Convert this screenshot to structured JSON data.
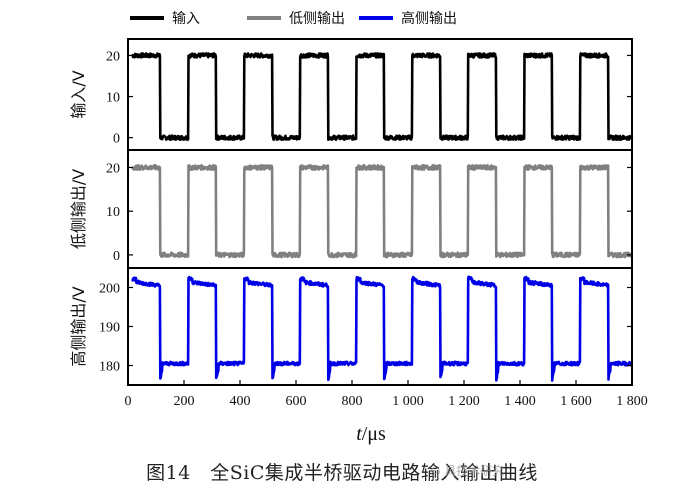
{
  "caption": "图14　全SiC集成半桥驱动电路输入输出曲线",
  "watermark": "◎ 具技术研究",
  "chart_data": {
    "type": "line",
    "xlabel": "t/μs",
    "xlim": [
      0,
      1800
    ],
    "x_ticks": [
      "0",
      "200",
      "400",
      "600",
      "800",
      "1 000",
      "1 200",
      "1 400",
      "1 600",
      "1 800"
    ],
    "legend_position": "top",
    "period_us": 200,
    "duty_high_fraction": 0.5,
    "panels": [
      {
        "series": "输入",
        "ylabel": "输入/V",
        "color": "#000000",
        "ylim": [
          -3,
          24
        ],
        "yticks": [
          0,
          10,
          20
        ],
        "high": 20,
        "low": 0
      },
      {
        "series": "低侧输出",
        "ylabel": "低侧输出/V",
        "color": "#808080",
        "ylim": [
          -3,
          24
        ],
        "yticks": [
          0,
          10,
          20
        ],
        "high": 20,
        "low": 0
      },
      {
        "series": "高侧输出",
        "ylabel": "高侧输出/V",
        "color": "#0000e6",
        "ylim": [
          175,
          205
        ],
        "yticks": [
          180,
          190,
          200
        ],
        "high": 201.5,
        "low": 180.5
      }
    ]
  }
}
